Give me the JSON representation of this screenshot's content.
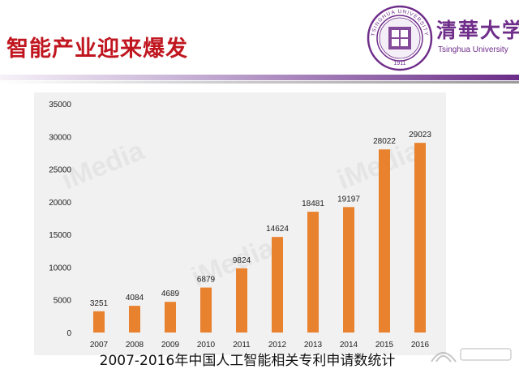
{
  "header": {
    "title": "智能产业迎来爆发",
    "brand_cn": "清華大学",
    "brand_en": "Tsinghua University",
    "seal_text": "TSINGHUA UNIVERSITY 1911"
  },
  "caption": "2007-2016年中国人工智能相关专利申请数统计",
  "colors": {
    "bar": "#e8822f",
    "title": "#c0161f",
    "brand": "#6f2d8a",
    "panel": "#f1f1f1"
  },
  "chart_data": {
    "type": "bar",
    "categories": [
      "2007",
      "2008",
      "2009",
      "2010",
      "2011",
      "2012",
      "2013",
      "2014",
      "2015",
      "2016"
    ],
    "values": [
      3251,
      4084,
      4689,
      6879,
      9824,
      14624,
      18481,
      19197,
      28022,
      29023
    ],
    "data_labels": [
      "3251",
      "4084",
      "4689",
      "6879",
      "9824",
      "14624",
      "18481",
      "19197",
      "28022",
      "29023"
    ],
    "yticks": [
      0,
      5000,
      10000,
      15000,
      20000,
      25000,
      30000,
      35000
    ],
    "ylim": [
      0,
      35000
    ],
    "grid": false,
    "legend": "none"
  }
}
